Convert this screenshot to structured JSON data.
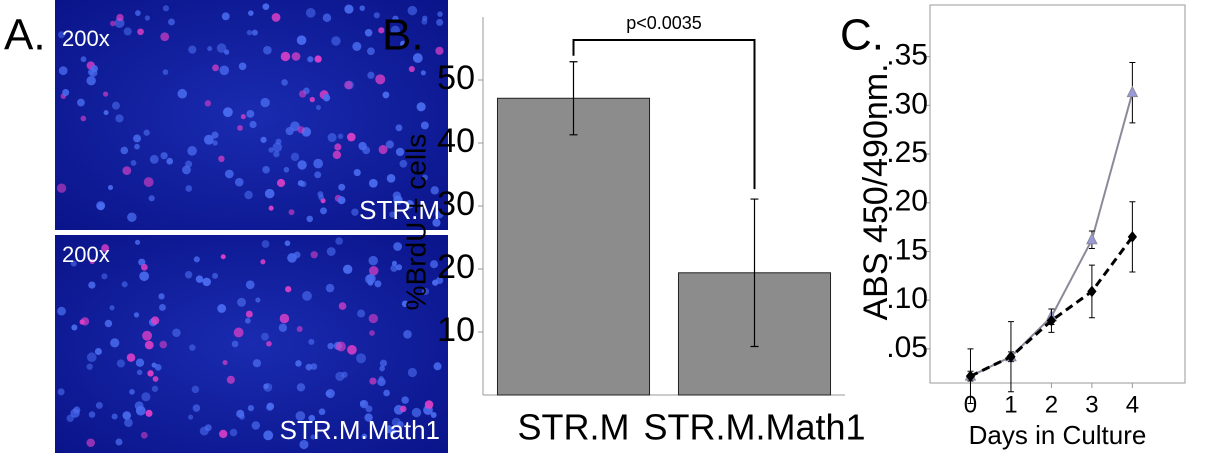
{
  "panel_a": {
    "label": "A.",
    "images": [
      {
        "magnification": "200x",
        "label": "STR.M"
      },
      {
        "magnification": "200x",
        "label": "STR.M.Math1"
      }
    ]
  },
  "chart_data": [
    {
      "type": "bar",
      "panel_label": "B.",
      "y_label": "%BrdU + cells",
      "categories": [
        "STR.M",
        "STR.M.Math1"
      ],
      "values": [
        47.1,
        19.4
      ],
      "errors": [
        5.8,
        11.7
      ],
      "color": "#8c8c8c",
      "ylim": [
        0,
        60
      ],
      "yticks": [
        10,
        20,
        30,
        40,
        50
      ],
      "annotation": "p<0.0035"
    },
    {
      "type": "line",
      "panel_label": "C.",
      "y_label": "ABS 450/490nm.",
      "x_label": "Days in Culture",
      "x": [
        0,
        1,
        2,
        3,
        4
      ],
      "xlim": [
        -1,
        5.3
      ],
      "xticks": [
        0,
        1,
        2,
        3,
        4
      ],
      "ylim": [
        0.015,
        0.403
      ],
      "yticks": [
        {
          "value": 0.05,
          "label": ".05"
        },
        {
          "value": 0.1,
          "label": ".10"
        },
        {
          "value": 0.15,
          "label": ".15"
        },
        {
          "value": 0.2,
          "label": ".20"
        },
        {
          "value": 0.25,
          "label": ".25"
        },
        {
          "value": 0.3,
          "label": ".30"
        },
        {
          "value": 0.35,
          "label": ".35"
        }
      ],
      "series": [
        {
          "color": "#8a8a9a",
          "marker": "triangle",
          "dashed": false,
          "values": [
            0.022,
            0.042,
            0.083,
            0.162,
            0.313
          ],
          "errors": [
            0.005,
            0.005,
            0.008,
            0.009,
            0.031
          ]
        },
        {
          "color": "#000000",
          "marker": "diamond",
          "dashed": true,
          "values": [
            0.022,
            0.042,
            0.079,
            0.109,
            0.165
          ],
          "errors": [
            0.028,
            0.036,
            0.012,
            0.027,
            0.036
          ]
        }
      ]
    }
  ]
}
